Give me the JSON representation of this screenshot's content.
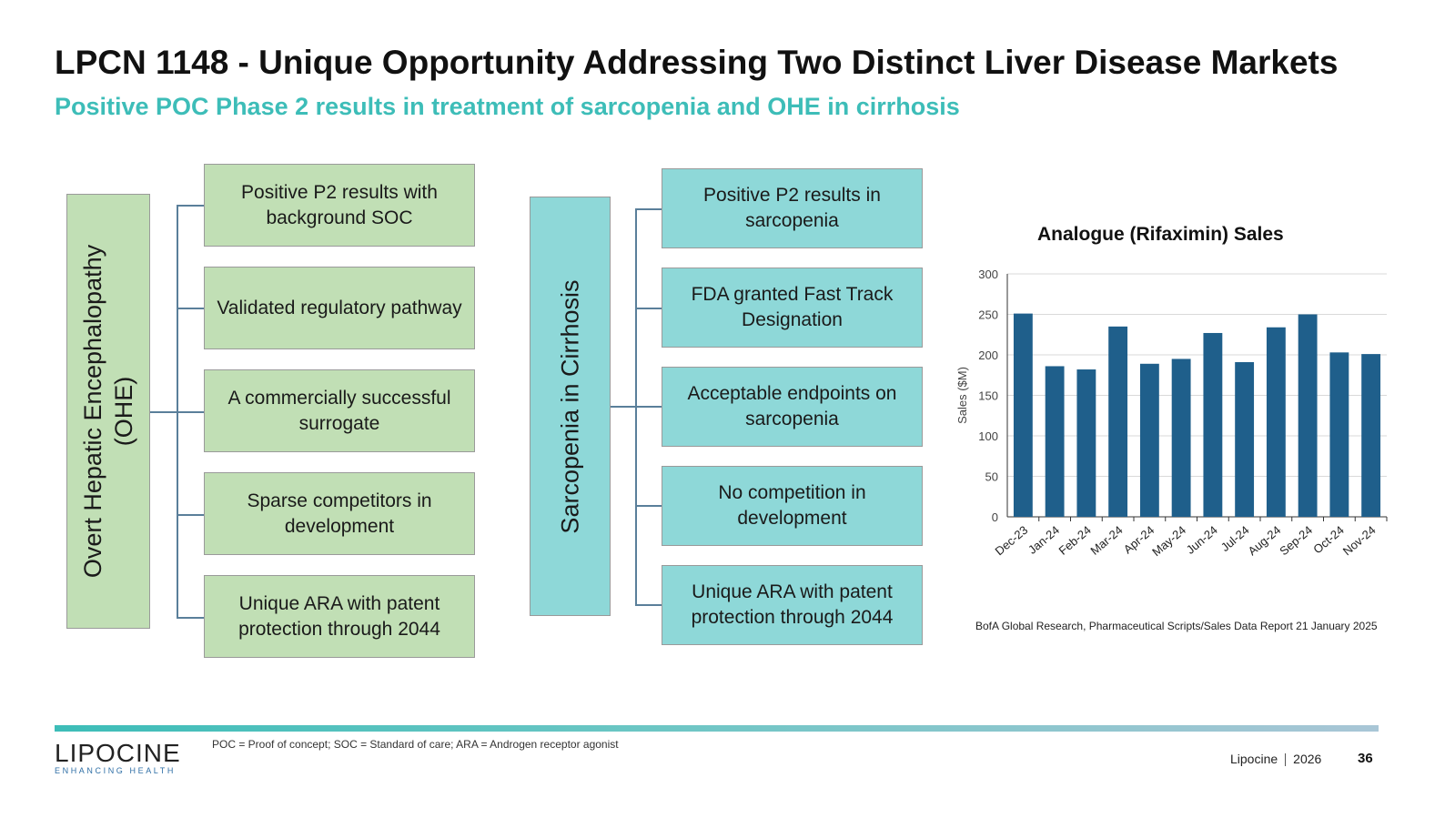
{
  "title": "LPCN 1148 - Unique Opportunity Addressing Two Distinct Liver Disease Markets",
  "subtitle": "Positive POC Phase 2 results in treatment of sarcopenia and OHE in cirrhosis",
  "ohe": {
    "label_line1": "Overt Hepatic Encephalopathy",
    "label_line2": "(OHE)",
    "color": "#c1dfb5",
    "items": [
      {
        "line1": "Positive P2 results with",
        "line2": "background SOC"
      },
      {
        "line1": "Validated regulatory pathway",
        "line2": ""
      },
      {
        "line1": "A commercially successful",
        "line2": "surrogate"
      },
      {
        "line1": "Sparse competitors in",
        "line2": "development"
      },
      {
        "line1": "Unique ARA with patent",
        "line2": "protection through 2044"
      }
    ]
  },
  "sarcopenia": {
    "label": "Sarcopenia in Cirrhosis",
    "color": "#8ed8d8",
    "items": [
      {
        "line1": "Positive P2 results in",
        "line2": "sarcopenia"
      },
      {
        "line1": "FDA granted Fast Track",
        "line2": "Designation"
      },
      {
        "line1": "Acceptable endpoints on",
        "line2": "sarcopenia"
      },
      {
        "line1": "No competition in",
        "line2": "development"
      },
      {
        "line1": "Unique ARA with patent",
        "line2": "protection through 2044"
      }
    ]
  },
  "chart_data": {
    "type": "bar",
    "title": "Analogue (Rifaximin) Sales",
    "xlabel": "",
    "ylabel": "Sales ($M)",
    "ylim": [
      0,
      300
    ],
    "yticks": [
      0,
      50,
      100,
      150,
      200,
      250,
      300
    ],
    "grid": true,
    "bar_color": "#1f5f8b",
    "categories": [
      "Dec-23",
      "Jan-24",
      "Feb-24",
      "Mar-24",
      "Apr-24",
      "May-24",
      "Jun-24",
      "Jul-24",
      "Aug-24",
      "Sep-24",
      "Oct-24",
      "Nov-24"
    ],
    "values": [
      251,
      186,
      182,
      235,
      189,
      195,
      227,
      191,
      234,
      250,
      203,
      201
    ]
  },
  "source": "BofA Global Research, Pharmaceutical Scripts/Sales Data Report  21 January 2025",
  "footer": {
    "logo_text": "LIPOCINE",
    "logo_tagline": "ENHANCING HEALTH",
    "abbreviations": "POC = Proof of concept; SOC = Standard of care; ARA = Androgen receptor agonist",
    "company": "Lipocine",
    "year": "2026",
    "page_number": "36"
  }
}
